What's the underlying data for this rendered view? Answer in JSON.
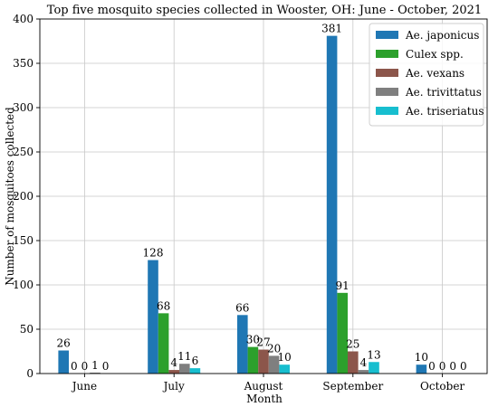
{
  "chart_data": {
    "type": "bar",
    "title": "Top five mosquito species collected in Wooster, OH: June - October, 2021",
    "xlabel": "Month",
    "ylabel": "Number of mosquitoes collected",
    "categories": [
      "June",
      "July",
      "August",
      "September",
      "October"
    ],
    "ylim": [
      0,
      400
    ],
    "yticks": [
      0,
      50,
      100,
      150,
      200,
      250,
      300,
      350,
      400
    ],
    "grid": true,
    "legend_position": "top-right",
    "series": [
      {
        "name": "Ae. japonicus",
        "color": "#1f77b4",
        "values": [
          26,
          128,
          66,
          381,
          10
        ]
      },
      {
        "name": "Culex spp.",
        "color": "#2ca02c",
        "values": [
          0,
          68,
          30,
          91,
          0
        ]
      },
      {
        "name": "Ae. vexans",
        "color": "#8c564b",
        "values": [
          0,
          4,
          27,
          25,
          0
        ]
      },
      {
        "name": "Ae. trivittatus",
        "color": "#7f7f7f",
        "values": [
          1,
          11,
          20,
          4,
          0
        ]
      },
      {
        "name": "Ae. triseriatus",
        "color": "#17becf",
        "values": [
          0,
          6,
          10,
          13,
          0
        ]
      }
    ]
  }
}
